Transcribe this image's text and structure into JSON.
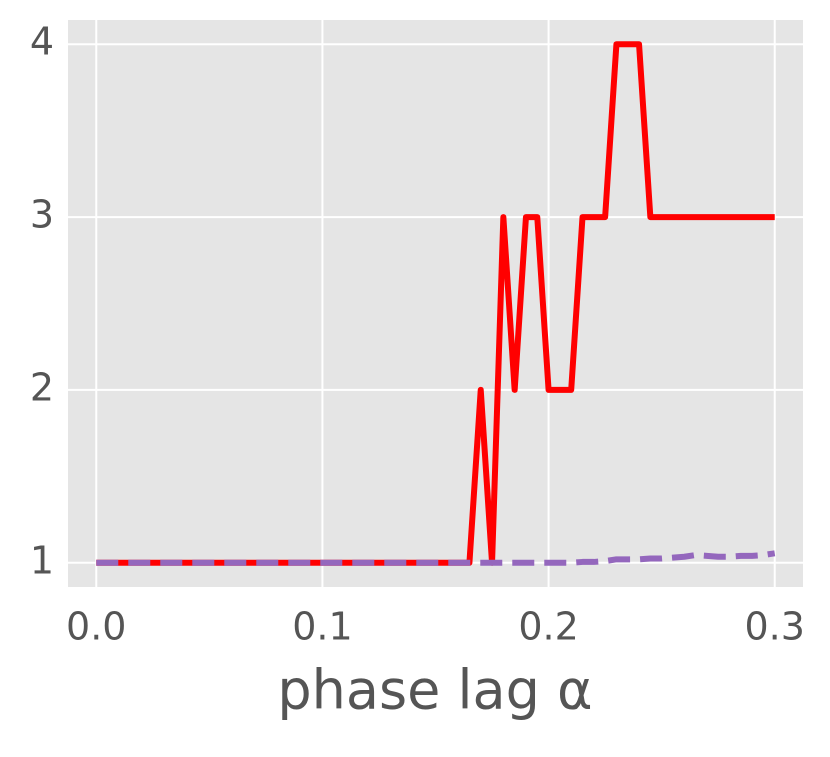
{
  "chart_data": {
    "type": "line",
    "xlabel": "phase lag α",
    "x": [
      0,
      0.005,
      0.01,
      0.015,
      0.02,
      0.025,
      0.03,
      0.035,
      0.04,
      0.045,
      0.05,
      0.055,
      0.06,
      0.065,
      0.07,
      0.075,
      0.08,
      0.085,
      0.09,
      0.095,
      0.1,
      0.105,
      0.11,
      0.115,
      0.12,
      0.125,
      0.13,
      0.135,
      0.14,
      0.145,
      0.15,
      0.155,
      0.16,
      0.165,
      0.17,
      0.175,
      0.18,
      0.185,
      0.19,
      0.195,
      0.2,
      0.205,
      0.21,
      0.215,
      0.22,
      0.225,
      0.23,
      0.235,
      0.24,
      0.245,
      0.25,
      0.255,
      0.26,
      0.265,
      0.27,
      0.275,
      0.28,
      0.285,
      0.29,
      0.295,
      0.3
    ],
    "series": [
      {
        "color": "#ff0000",
        "dash": false,
        "values": [
          1,
          1,
          1,
          1,
          1,
          1,
          1,
          1,
          1,
          1,
          1,
          1,
          1,
          1,
          1,
          1,
          1,
          1,
          1,
          1,
          1,
          1,
          1,
          1,
          1,
          1,
          1,
          1,
          1,
          1,
          1,
          1,
          1,
          1,
          2,
          1,
          3,
          2,
          3,
          3,
          2,
          2,
          2,
          3,
          3,
          3,
          4,
          4,
          4,
          3,
          3,
          3,
          3,
          3,
          3,
          3,
          3,
          3,
          3,
          3,
          3
        ]
      },
      {
        "color": "#9467bd",
        "dash": true,
        "values": [
          1,
          1,
          1,
          1,
          1,
          1,
          1,
          1,
          1,
          1,
          1,
          1,
          1,
          1,
          1,
          1,
          1,
          1,
          1,
          1,
          1,
          1,
          1,
          1,
          1,
          1,
          1,
          1,
          1,
          1,
          1,
          1,
          1,
          1,
          1,
          1,
          1,
          1,
          1,
          1,
          1,
          1,
          1,
          1.005,
          1.005,
          1.01,
          1.02,
          1.02,
          1.02,
          1.025,
          1.025,
          1.03,
          1.035,
          1.045,
          1.04,
          1.035,
          1.035,
          1.04,
          1.04,
          1.045,
          1.055
        ]
      }
    ],
    "xlim": [
      -0.0125,
      0.3125
    ],
    "ylim": [
      0.86,
      4.14
    ],
    "xticks": [
      {
        "value": 0,
        "label": "0.0"
      },
      0.1,
      0.2,
      0.3
    ],
    "yticks": [
      1,
      2,
      3,
      4
    ],
    "grid": true
  }
}
